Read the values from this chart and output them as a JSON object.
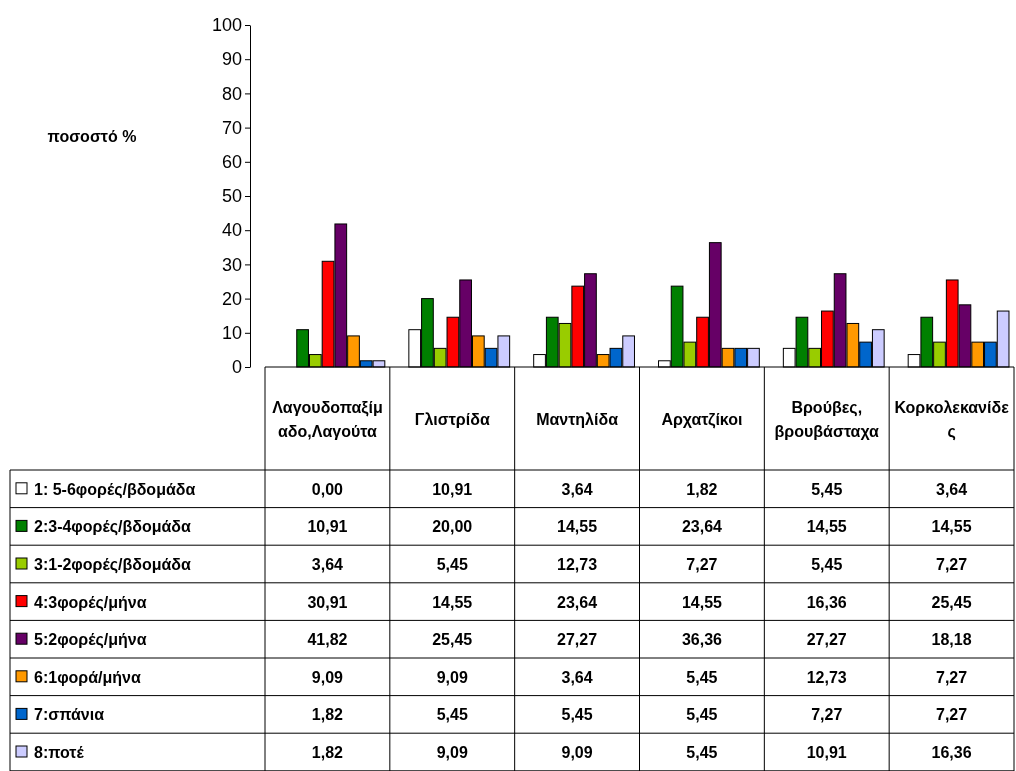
{
  "chart_data": {
    "type": "bar",
    "ylabel": "ποσοστό %",
    "ylim": [
      0,
      100
    ],
    "yticks": [
      0,
      10,
      20,
      30,
      40,
      50,
      60,
      70,
      80,
      90,
      100
    ],
    "grid": false,
    "legend": "bottom left",
    "categories": [
      "Λαγουδοπαξίμαδο,Λαγούτα",
      "Γλιστρίδα",
      "Μαντηλίδα",
      "Αρχατζίκοι",
      "Βρούβες, βρουβάσταχα",
      "Κορκολεκανίδες"
    ],
    "series": [
      {
        "name": "1: 5-6φορές/βδομάδα",
        "color": "#ffffff",
        "values": [
          0,
          10.91,
          3.64,
          1.82,
          5.45,
          3.64
        ],
        "value_labels": [
          "0,00",
          "10,91",
          "3,64",
          "1,82",
          "5,45",
          "3,64"
        ]
      },
      {
        "name": "2:3-4φορές/βδομάδα",
        "color": "#008000",
        "values": [
          10.91,
          20,
          14.55,
          23.64,
          14.55,
          14.55
        ],
        "value_labels": [
          "10,91",
          "20,00",
          "14,55",
          "23,64",
          "14,55",
          "14,55"
        ]
      },
      {
        "name": "3:1-2φορές/βδομάδα",
        "color": "#99cc00",
        "values": [
          3.64,
          5.45,
          12.73,
          7.27,
          5.45,
          7.27
        ],
        "value_labels": [
          "3,64",
          "5,45",
          "12,73",
          "7,27",
          "5,45",
          "7,27"
        ]
      },
      {
        "name": "4:3φορές/μήνα",
        "color": "#ff0000",
        "values": [
          30.91,
          14.55,
          23.64,
          14.55,
          16.36,
          25.45
        ],
        "value_labels": [
          "30,91",
          "14,55",
          "23,64",
          "14,55",
          "16,36",
          "25,45"
        ]
      },
      {
        "name": "5:2φορές/μήνα",
        "color": "#660066",
        "values": [
          41.82,
          25.45,
          27.27,
          36.36,
          27.27,
          18.18
        ],
        "value_labels": [
          "41,82",
          "25,45",
          "27,27",
          "36,36",
          "27,27",
          "18,18"
        ]
      },
      {
        "name": "6:1φορά/μήνα",
        "color": "#ff9900",
        "values": [
          9.09,
          9.09,
          3.64,
          5.45,
          12.73,
          7.27
        ],
        "value_labels": [
          "9,09",
          "9,09",
          "3,64",
          "5,45",
          "12,73",
          "7,27"
        ]
      },
      {
        "name": "7:σπάνια",
        "color": "#0066cc",
        "values": [
          1.82,
          5.45,
          5.45,
          5.45,
          7.27,
          7.27
        ],
        "value_labels": [
          "1,82",
          "5,45",
          "5,45",
          "5,45",
          "7,27",
          "7,27"
        ]
      },
      {
        "name": "8:ποτέ",
        "color": "#ccccff",
        "values": [
          1.82,
          9.09,
          9.09,
          5.45,
          10.91,
          16.36
        ],
        "value_labels": [
          "1,82",
          "9,09",
          "9,09",
          "5,45",
          "10,91",
          "16,36"
        ]
      }
    ]
  }
}
